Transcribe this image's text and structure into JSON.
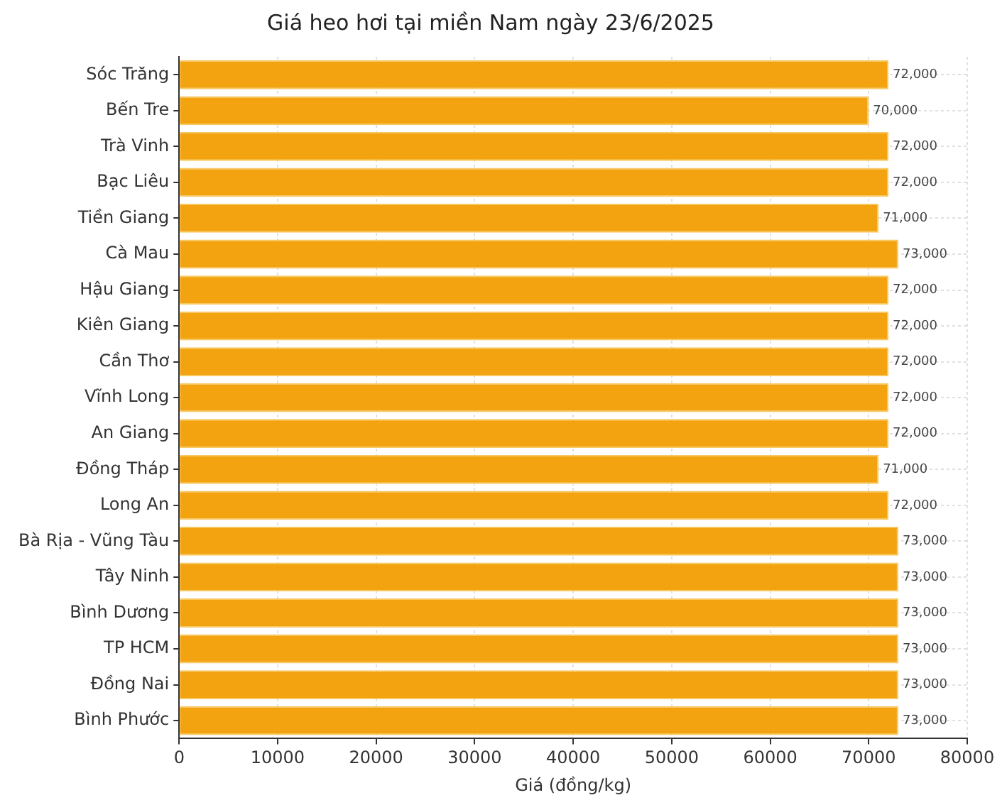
{
  "chart_data": {
    "type": "bar",
    "orientation": "horizontal",
    "title": "Giá heo hơi tại miền Nam ngày 23/6/2025",
    "xlabel": "Giá (đồng/kg)",
    "categories": [
      "Sóc Trăng",
      "Bến Tre",
      "Trà Vinh",
      "Bạc Liêu",
      "Tiền Giang",
      "Cà Mau",
      "Hậu Giang",
      "Kiên Giang",
      "Cần Thơ",
      "Vĩnh Long",
      "An Giang",
      "Đồng Tháp",
      "Long An",
      "Bà Rịa - Vũng Tàu",
      "Tây Ninh",
      "Bình Dương",
      "TP HCM",
      "Đồng Nai",
      "Bình Phước"
    ],
    "values": [
      72000,
      70000,
      72000,
      72000,
      71000,
      73000,
      72000,
      72000,
      72000,
      72000,
      72000,
      71000,
      72000,
      73000,
      73000,
      73000,
      73000,
      73000,
      73000
    ],
    "value_labels": [
      "72,000",
      "70,000",
      "72,000",
      "72,000",
      "71,000",
      "73,000",
      "72,000",
      "72,000",
      "72,000",
      "72,000",
      "72,000",
      "71,000",
      "72,000",
      "73,000",
      "73,000",
      "73,000",
      "73,000",
      "73,000",
      "73,000"
    ],
    "color": "#f2a30f",
    "xlim": [
      0,
      80000
    ],
    "xticks": [
      0,
      10000,
      20000,
      30000,
      40000,
      50000,
      60000,
      70000,
      80000
    ],
    "grid": true
  }
}
